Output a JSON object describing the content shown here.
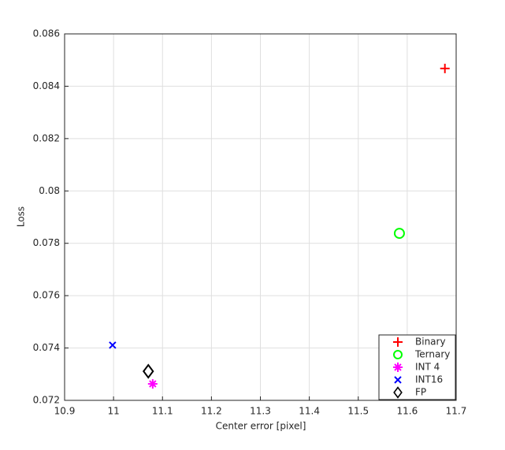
{
  "chart_data": {
    "type": "scatter",
    "xlabel": "Center error [pixel]",
    "ylabel": "Loss",
    "xlim": [
      10.9,
      11.7
    ],
    "ylim": [
      0.072,
      0.086
    ],
    "xticks": [
      10.9,
      11,
      11.1,
      11.2,
      11.3,
      11.4,
      11.5,
      11.6,
      11.7
    ],
    "yticks": [
      0.072,
      0.074,
      0.076,
      0.078,
      0.08,
      0.082,
      0.084,
      0.086
    ],
    "grid": true,
    "legend": "bottom-right",
    "series": [
      {
        "name": "Binary",
        "color": "#ff0000",
        "marker": "+",
        "x": [
          11.677
        ],
        "values": [
          0.08468
        ]
      },
      {
        "name": "Ternary",
        "color": "#00ff00",
        "marker": "o",
        "x": [
          11.584
        ],
        "values": [
          0.07838
        ]
      },
      {
        "name": "INT 4",
        "color": "#ff00ff",
        "marker": "*",
        "x": [
          11.08
        ],
        "values": [
          0.07263
        ]
      },
      {
        "name": "INT16",
        "color": "#0000ff",
        "marker": "x",
        "x": [
          10.998
        ],
        "values": [
          0.07411
        ]
      },
      {
        "name": "FP",
        "color": "#000000",
        "marker": "d",
        "x": [
          11.071
        ],
        "values": [
          0.07311
        ]
      }
    ]
  }
}
